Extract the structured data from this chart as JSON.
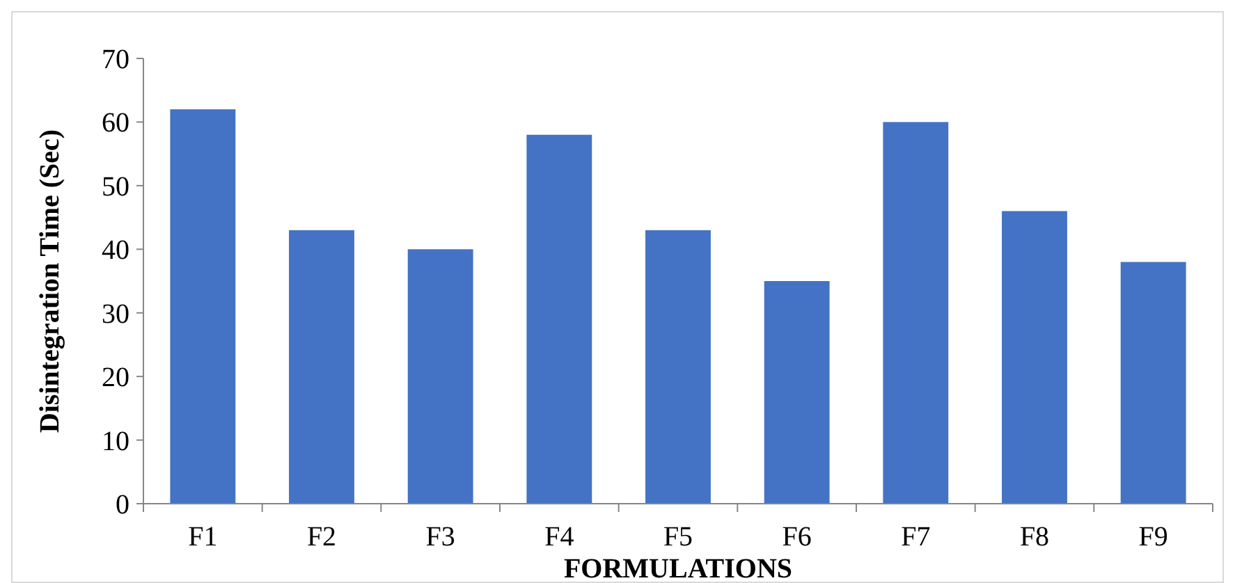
{
  "chart_data": {
    "type": "bar",
    "xlabel": "FORMULATIONS",
    "ylabel": "Disintegration Time (Sec)",
    "categories": [
      "F1",
      "F2",
      "F3",
      "F4",
      "F5",
      "F6",
      "F7",
      "F8",
      "F9"
    ],
    "values": [
      62,
      43,
      40,
      58,
      43,
      35,
      60,
      46,
      38
    ],
    "color": "#4472c4",
    "ylim": [
      0,
      70
    ],
    "yticks": [
      0,
      10,
      20,
      30,
      40,
      50,
      60,
      70
    ],
    "grid": false
  }
}
